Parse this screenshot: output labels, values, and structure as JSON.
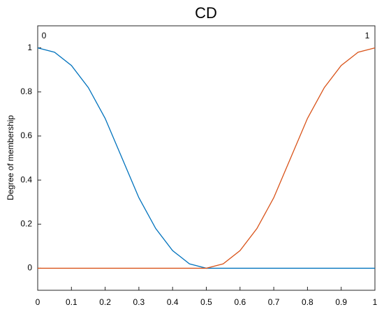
{
  "chart_data": {
    "type": "line",
    "title": "CD",
    "y_label": "Degree of membership",
    "x": [
      0,
      0.05,
      0.1,
      0.15,
      0.2,
      0.25,
      0.3,
      0.35,
      0.4,
      0.45,
      0.5,
      0.55,
      0.6,
      0.65,
      0.7,
      0.75,
      0.8,
      0.85,
      0.9,
      0.95,
      1
    ],
    "series": [
      {
        "name": "0",
        "color": "#0072BD",
        "values": [
          1,
          0.98,
          0.92,
          0.82,
          0.68,
          0.5,
          0.32,
          0.18,
          0.08,
          0.02,
          0,
          0,
          0,
          0,
          0,
          0,
          0,
          0,
          0,
          0,
          0
        ]
      },
      {
        "name": "1",
        "color": "#D95319",
        "values": [
          0,
          0,
          0,
          0,
          0,
          0,
          0,
          0,
          0,
          0,
          0,
          0.02,
          0.08,
          0.18,
          0.32,
          0.5,
          0.68,
          0.82,
          0.92,
          0.98,
          1
        ]
      }
    ],
    "xlim": [
      0,
      1
    ],
    "xticks": [
      0,
      0.1,
      0.2,
      0.3,
      0.4,
      0.5,
      0.6,
      0.7,
      0.8,
      0.9,
      1
    ],
    "ylim": [
      -0.1,
      1.1
    ],
    "yticks": [
      0,
      0.2,
      0.4,
      0.6,
      0.8,
      1
    ],
    "grid": false
  }
}
